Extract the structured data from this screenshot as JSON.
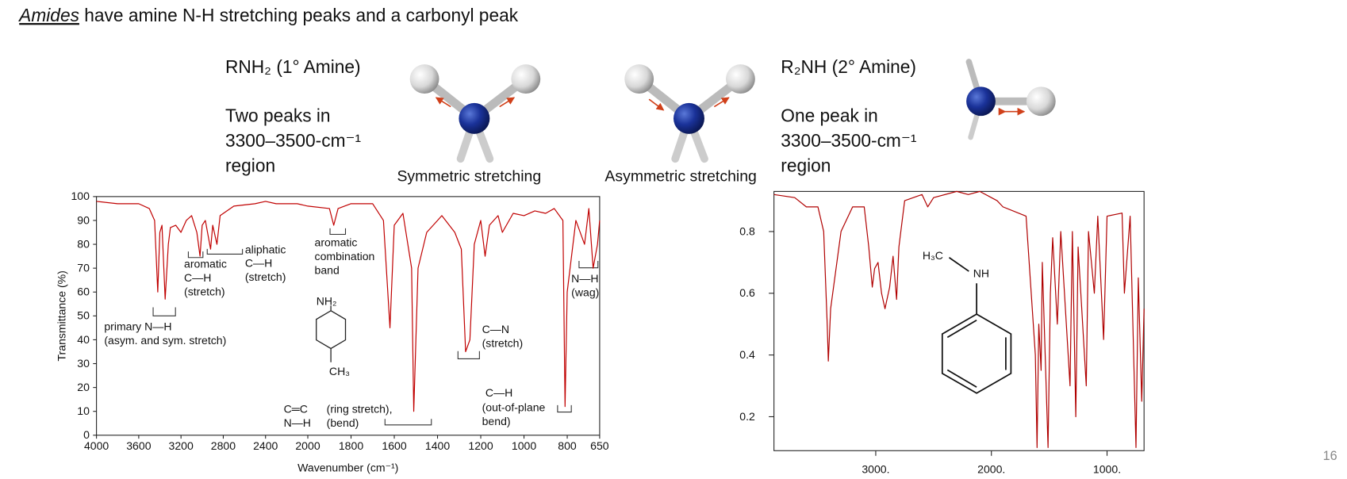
{
  "slide": {
    "title_emphasis": "Amides",
    "title_rest": " have amine N-H stretching peaks and a carbonyl peak",
    "primary_heading": "RNH₂ (1° Amine)",
    "primary_text": [
      "Two peaks in",
      "3300–3500-cm⁻¹",
      "region"
    ],
    "secondary_heading": "R₂NH (2° Amine)",
    "secondary_text": [
      "One peak in",
      "3300–3500-cm⁻¹",
      "region"
    ],
    "symmetric_caption": "Symmetric stretching",
    "asymmetric_caption": "Asymmetric stretching",
    "page_number": "16"
  },
  "chart_data": [
    {
      "type": "line",
      "xlabel": "Wavenumber (cm⁻¹)",
      "ylabel": "Transmittance (%)",
      "color": "#c00000",
      "xlim": [
        4000,
        650
      ],
      "ylim": [
        0,
        100
      ],
      "x_scale_break": 2000,
      "xticks": [
        4000,
        3600,
        3200,
        2800,
        2400,
        2000,
        1800,
        1600,
        1400,
        1200,
        1000,
        800,
        650
      ],
      "yticks": [
        0,
        10,
        20,
        30,
        40,
        50,
        60,
        70,
        80,
        90,
        100
      ],
      "x": [
        4000,
        3800,
        3600,
        3500,
        3450,
        3420,
        3400,
        3380,
        3350,
        3320,
        3300,
        3250,
        3200,
        3150,
        3100,
        3050,
        3020,
        3000,
        2970,
        2920,
        2900,
        2860,
        2830,
        2700,
        2500,
        2400,
        2300,
        2100,
        2000,
        1900,
        1880,
        1860,
        1800,
        1700,
        1650,
        1620,
        1600,
        1560,
        1520,
        1510,
        1490,
        1450,
        1400,
        1380,
        1320,
        1290,
        1270,
        1250,
        1230,
        1200,
        1180,
        1160,
        1120,
        1100,
        1050,
        1000,
        950,
        900,
        860,
        820,
        810,
        800,
        760,
        720,
        700,
        680,
        660,
        650
      ],
      "values": [
        98,
        97,
        97,
        95,
        90,
        60,
        85,
        88,
        57,
        80,
        87,
        88,
        85,
        90,
        92,
        85,
        75,
        88,
        90,
        78,
        88,
        80,
        92,
        96,
        97,
        98,
        97,
        97,
        96,
        95,
        88,
        95,
        97,
        97,
        90,
        45,
        88,
        93,
        70,
        10,
        70,
        85,
        90,
        92,
        85,
        78,
        35,
        40,
        80,
        90,
        75,
        88,
        92,
        85,
        93,
        92,
        94,
        93,
        95,
        90,
        12,
        60,
        90,
        80,
        95,
        70,
        80,
        90
      ],
      "annotations": [
        "primary N—H",
        "(asym. and sym. stretch)",
        "aromatic",
        "C—H",
        "(stretch)",
        "aliphatic",
        "C—H",
        "(stretch)",
        "aromatic",
        "combination",
        "band",
        "NH₂",
        "CH₃",
        "C—N",
        "(stretch)",
        "N—H",
        "(wag)",
        "C—H",
        "(out-of-plane",
        "bend)",
        "C═C",
        "N—H",
        "(ring stretch),",
        "(bend)"
      ]
    },
    {
      "type": "line",
      "color": "#b00000",
      "xlim": [
        3880,
        680
      ],
      "ylim": [
        0.09,
        0.93
      ],
      "xticks": [
        {
          "value": 3000,
          "label": "3000."
        },
        {
          "value": 2000,
          "label": "2000."
        },
        {
          "value": 1000,
          "label": "1000."
        }
      ],
      "yticks": [
        0.2,
        0.4,
        0.6,
        0.8
      ],
      "x": [
        3880,
        3700,
        3600,
        3500,
        3450,
        3420,
        3410,
        3390,
        3300,
        3200,
        3100,
        3060,
        3030,
        3010,
        2980,
        2950,
        2920,
        2880,
        2850,
        2820,
        2800,
        2750,
        2600,
        2550,
        2500,
        2300,
        2200,
        2100,
        2000,
        1950,
        1900,
        1700,
        1620,
        1605,
        1590,
        1570,
        1560,
        1510,
        1490,
        1470,
        1430,
        1400,
        1320,
        1300,
        1270,
        1250,
        1180,
        1160,
        1110,
        1080,
        1030,
        1000,
        870,
        850,
        800,
        750,
        730,
        700,
        680
      ],
      "values": [
        0.92,
        0.91,
        0.88,
        0.88,
        0.8,
        0.5,
        0.38,
        0.55,
        0.8,
        0.88,
        0.88,
        0.75,
        0.62,
        0.68,
        0.7,
        0.6,
        0.55,
        0.62,
        0.72,
        0.58,
        0.75,
        0.9,
        0.92,
        0.88,
        0.91,
        0.93,
        0.92,
        0.93,
        0.91,
        0.9,
        0.88,
        0.85,
        0.4,
        0.1,
        0.5,
        0.35,
        0.7,
        0.1,
        0.6,
        0.78,
        0.5,
        0.8,
        0.3,
        0.8,
        0.2,
        0.75,
        0.3,
        0.8,
        0.6,
        0.85,
        0.45,
        0.85,
        0.86,
        0.6,
        0.85,
        0.1,
        0.65,
        0.25,
        0.55
      ],
      "annotations": [
        "H₃C",
        "NH"
      ]
    }
  ]
}
